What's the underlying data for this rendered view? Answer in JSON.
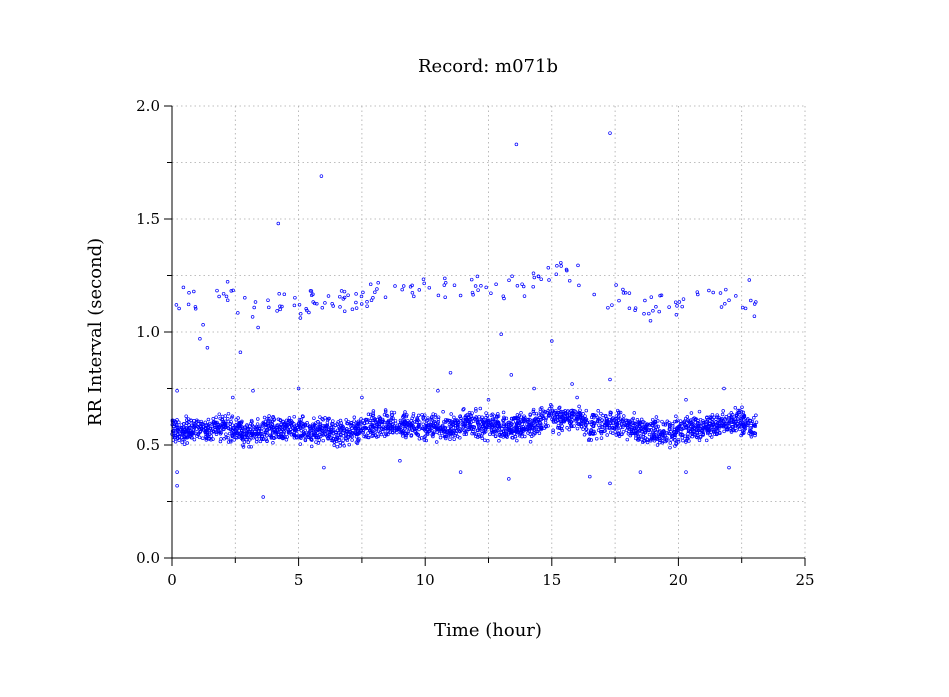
{
  "chart_data": {
    "type": "scatter",
    "title": "Record:  m071b",
    "xlabel": "Time (hour)",
    "ylabel": "RR Interval (second)",
    "xlim": [
      0,
      25
    ],
    "ylim": [
      0,
      2.0
    ],
    "x_ticks": [
      0,
      5,
      10,
      15,
      20,
      25
    ],
    "x_tick_labels": [
      "0",
      "5",
      "10",
      "15",
      "20",
      "25"
    ],
    "y_ticks": [
      0.0,
      0.5,
      1.0,
      1.5,
      2.0
    ],
    "y_tick_labels": [
      "0.0",
      "0.5",
      "1.0",
      "1.5",
      "2.0"
    ],
    "grid": true,
    "marker_color": "#0000ff",
    "series": [
      {
        "main_band": [
          [
            0.0,
            0.57
          ],
          [
            0.5,
            0.56
          ],
          [
            1.0,
            0.57
          ],
          [
            1.5,
            0.56
          ],
          [
            2.0,
            0.58
          ],
          [
            2.5,
            0.57
          ],
          [
            3.0,
            0.55
          ],
          [
            3.5,
            0.56
          ],
          [
            4.0,
            0.57
          ],
          [
            4.5,
            0.57
          ],
          [
            5.0,
            0.57
          ],
          [
            5.5,
            0.56
          ],
          [
            6.0,
            0.56
          ],
          [
            6.5,
            0.55
          ],
          [
            7.0,
            0.56
          ],
          [
            7.5,
            0.57
          ],
          [
            8.0,
            0.58
          ],
          [
            8.5,
            0.59
          ],
          [
            9.0,
            0.59
          ],
          [
            9.5,
            0.58
          ],
          [
            10.0,
            0.58
          ],
          [
            10.5,
            0.58
          ],
          [
            11.0,
            0.57
          ],
          [
            11.5,
            0.59
          ],
          [
            12.0,
            0.59
          ],
          [
            12.5,
            0.59
          ],
          [
            13.0,
            0.58
          ],
          [
            13.5,
            0.58
          ],
          [
            14.0,
            0.58
          ],
          [
            14.5,
            0.6
          ],
          [
            15.0,
            0.62
          ],
          [
            15.5,
            0.62
          ],
          [
            16.0,
            0.62
          ],
          [
            16.5,
            0.58
          ],
          [
            17.0,
            0.59
          ],
          [
            17.5,
            0.6
          ],
          [
            18.0,
            0.59
          ],
          [
            18.5,
            0.57
          ],
          [
            19.0,
            0.56
          ],
          [
            19.5,
            0.56
          ],
          [
            20.0,
            0.56
          ],
          [
            20.5,
            0.58
          ],
          [
            21.0,
            0.58
          ],
          [
            21.5,
            0.59
          ],
          [
            22.0,
            0.6
          ],
          [
            22.5,
            0.6
          ],
          [
            23.0,
            0.58
          ]
        ],
        "upper_band": [
          [
            0.1,
            1.11
          ],
          [
            0.5,
            1.16
          ],
          [
            0.8,
            1.17
          ],
          [
            1.2,
            1.02
          ],
          [
            1.5,
            1.12
          ],
          [
            2.0,
            1.2
          ],
          [
            2.5,
            1.14
          ],
          [
            3.0,
            1.1
          ],
          [
            3.5,
            1.12
          ],
          [
            4.0,
            1.1
          ],
          [
            4.5,
            1.15
          ],
          [
            5.0,
            1.1
          ],
          [
            5.5,
            1.14
          ],
          [
            6.0,
            1.12
          ],
          [
            6.5,
            1.14
          ],
          [
            7.0,
            1.14
          ],
          [
            7.5,
            1.16
          ],
          [
            8.0,
            1.17
          ],
          [
            8.5,
            1.19
          ],
          [
            9.0,
            1.2
          ],
          [
            9.5,
            1.19
          ],
          [
            10.0,
            1.19
          ],
          [
            10.5,
            1.18
          ],
          [
            11.0,
            1.2
          ],
          [
            11.5,
            1.2
          ],
          [
            12.0,
            1.2
          ],
          [
            12.5,
            1.21
          ],
          [
            13.0,
            1.19
          ],
          [
            13.5,
            1.2
          ],
          [
            14.0,
            1.21
          ],
          [
            14.5,
            1.22
          ],
          [
            15.0,
            1.26
          ],
          [
            15.5,
            1.28
          ],
          [
            16.0,
            1.26
          ],
          [
            16.5,
            1.14
          ],
          [
            17.0,
            1.12
          ],
          [
            17.5,
            1.17
          ],
          [
            18.0,
            1.16
          ],
          [
            18.5,
            1.1
          ],
          [
            19.0,
            1.12
          ],
          [
            19.5,
            1.14
          ],
          [
            20.0,
            1.12
          ],
          [
            20.5,
            1.12
          ],
          [
            21.0,
            1.14
          ],
          [
            21.5,
            1.16
          ],
          [
            22.0,
            1.16
          ],
          [
            22.5,
            1.16
          ],
          [
            23.0,
            1.13
          ]
        ],
        "outliers": [
          [
            4.2,
            1.48
          ],
          [
            5.9,
            1.69
          ],
          [
            13.6,
            1.83
          ],
          [
            17.3,
            1.88
          ],
          [
            3.6,
            0.27
          ],
          [
            0.2,
            0.32
          ],
          [
            0.2,
            0.38
          ],
          [
            13.3,
            0.35
          ],
          [
            16.5,
            0.36
          ],
          [
            17.3,
            0.33
          ],
          [
            11.4,
            0.38
          ],
          [
            1.1,
            0.97
          ],
          [
            1.4,
            0.93
          ],
          [
            2.7,
            0.91
          ],
          [
            3.4,
            1.02
          ],
          [
            13.0,
            0.99
          ],
          [
            15.0,
            0.96
          ],
          [
            11.0,
            0.82
          ],
          [
            13.4,
            0.81
          ],
          [
            17.3,
            0.79
          ],
          [
            15.8,
            0.77
          ],
          [
            0.2,
            0.74
          ],
          [
            3.2,
            0.74
          ],
          [
            6.0,
            0.4
          ],
          [
            9.0,
            0.43
          ],
          [
            18.5,
            0.38
          ],
          [
            20.3,
            0.38
          ],
          [
            22.0,
            0.4
          ],
          [
            7.5,
            0.71
          ],
          [
            12.5,
            0.7
          ],
          [
            16.0,
            0.71
          ],
          [
            20.3,
            0.7
          ],
          [
            21.8,
            0.75
          ],
          [
            2.4,
            0.71
          ],
          [
            14.3,
            0.75
          ],
          [
            23.0,
            1.07
          ],
          [
            22.8,
            1.23
          ],
          [
            18.9,
            1.05
          ],
          [
            10.5,
            0.74
          ],
          [
            5.0,
            0.75
          ]
        ]
      }
    ]
  }
}
